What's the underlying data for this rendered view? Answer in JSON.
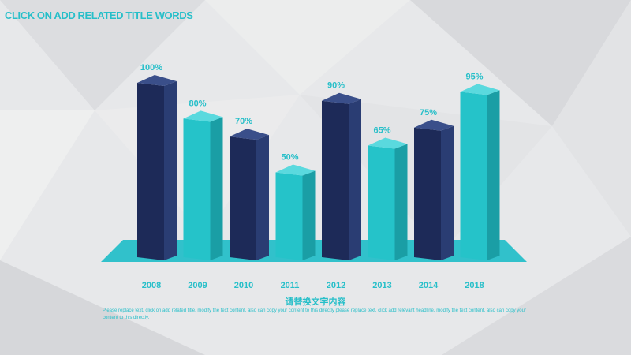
{
  "slide": {
    "title": "CLICK ON ADD RELATED TITLE WORDS",
    "caption": "请替换文字内容",
    "body_text": "Please replace text, click on add related title, modify the text content, also can copy your content to this directly please replace text, click add relevant headline, modify the text content, also can copy your content to this directly."
  },
  "colors": {
    "accent": "#27bfc9",
    "navy": "#1f2d5c",
    "teal": "#26c0c7",
    "background": "#e7e8ea"
  },
  "chart_data": {
    "type": "bar",
    "categories": [
      "2008",
      "2009",
      "2010",
      "2011",
      "2012",
      "2013",
      "2014",
      "2018"
    ],
    "values": [
      100,
      80,
      70,
      50,
      90,
      65,
      75,
      95
    ],
    "value_labels": [
      "100%",
      "80%",
      "70%",
      "50%",
      "90%",
      "65%",
      "75%",
      "95%"
    ],
    "bar_colors": [
      "navy",
      "teal",
      "navy",
      "teal",
      "navy",
      "teal",
      "navy",
      "teal"
    ],
    "title": "",
    "xlabel": "",
    "ylabel": "",
    "ylim": [
      0,
      100
    ],
    "grid": false,
    "legend": "none"
  }
}
